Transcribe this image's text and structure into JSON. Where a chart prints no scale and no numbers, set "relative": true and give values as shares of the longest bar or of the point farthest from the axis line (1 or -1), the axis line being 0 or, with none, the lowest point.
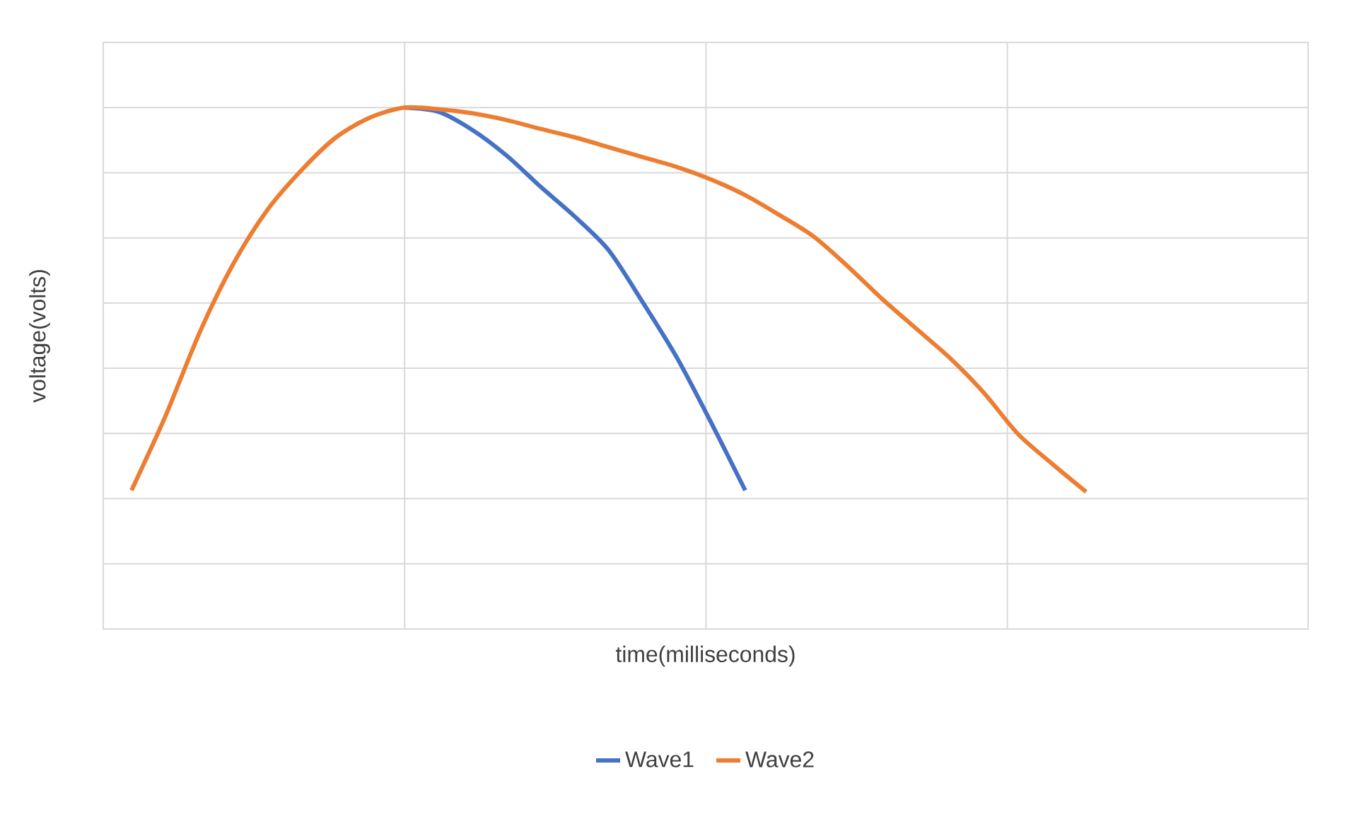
{
  "chart_data": {
    "type": "line",
    "relative": true,
    "xlabel": "time(milliseconds)",
    "ylabel": "voltage(volts)",
    "categories": [
      null,
      null,
      null,
      null,
      null,
      null,
      null,
      null,
      null,
      null,
      null,
      null,
      null,
      null,
      null,
      null,
      null,
      null,
      null,
      null,
      null,
      null,
      null,
      null,
      null,
      null,
      null,
      null,
      null
    ],
    "series": [
      {
        "name": "Wave1",
        "color": "#4472c4",
        "values": [
          null,
          null,
          null,
          null,
          null,
          null,
          null,
          null,
          1,
          0.992,
          0.957,
          0.908,
          0.848,
          0.791,
          0.726,
          0.626,
          0.52,
          0.396,
          0.266,
          null,
          null,
          null,
          null,
          null,
          null,
          null,
          null,
          null,
          null
        ]
      },
      {
        "name": "Wave2",
        "color": "#ed7d31",
        "values": [
          0.266,
          0.409,
          0.569,
          0.702,
          0.805,
          0.881,
          0.943,
          0.981,
          1,
          0.997,
          0.989,
          0.976,
          0.959,
          0.943,
          0.924,
          0.905,
          0.886,
          0.862,
          0.832,
          0.794,
          0.753,
          0.696,
          0.634,
          0.577,
          0.52,
          0.453,
          0.374,
          0.317,
          0.263
        ]
      }
    ],
    "grid": true,
    "legend": "bottom",
    "marker": "none",
    "line_style": "solid"
  }
}
